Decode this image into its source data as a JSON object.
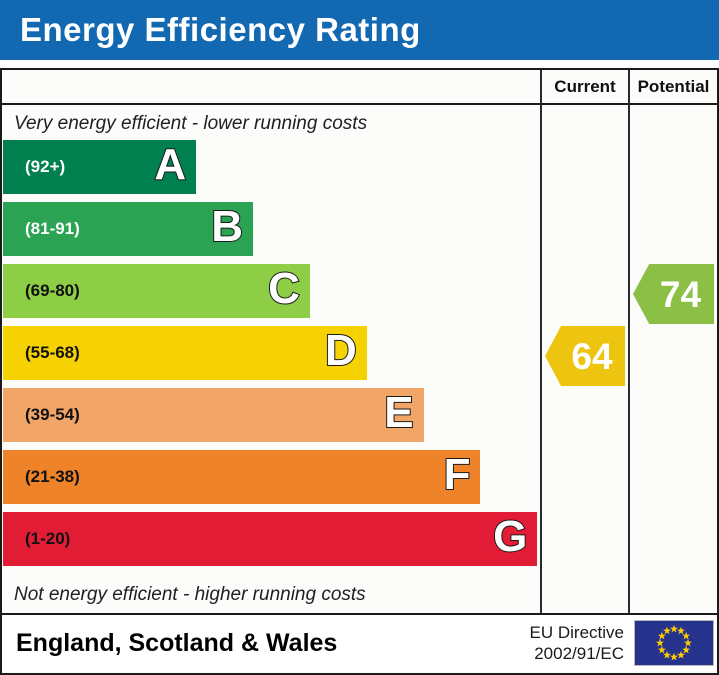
{
  "title": "Energy Efficiency Rating",
  "title_bar_color": "#1268b1",
  "columns": {
    "current_label": "Current",
    "potential_label": "Potential"
  },
  "captions": {
    "top": "Very energy efficient - lower running costs",
    "bottom": "Not energy efficient - higher running costs"
  },
  "bands": [
    {
      "letter": "A",
      "range": "(92+)",
      "color": "#00804e",
      "label_color": "#ffffff"
    },
    {
      "letter": "B",
      "range": "(81-91)",
      "color": "#2aa352",
      "label_color": "#ffffff"
    },
    {
      "letter": "C",
      "range": "(69-80)",
      "color": "#8dce46",
      "label_color": "#111111"
    },
    {
      "letter": "D",
      "range": "(55-68)",
      "color": "#f7d202",
      "label_color": "#111111"
    },
    {
      "letter": "E",
      "range": "(39-54)",
      "color": "#f1a566",
      "label_color": "#111111"
    },
    {
      "letter": "F",
      "range": "(21-38)",
      "color": "#ee8329",
      "label_color": "#111111"
    },
    {
      "letter": "G",
      "range": "(1-20)",
      "color": "#e31c35",
      "label_color": "#111111"
    }
  ],
  "ratings": {
    "current": {
      "value": "64",
      "band": "D",
      "color": "#edc40f"
    },
    "potential": {
      "value": "74",
      "band": "C",
      "color": "#8cbf45"
    }
  },
  "footer": {
    "region": "England, Scotland & Wales",
    "directive_line1": "EU Directive",
    "directive_line2": "2002/91/EC",
    "flag_colors": {
      "field": "#26338c",
      "stars": "#ffcc00"
    }
  },
  "chart_data": {
    "type": "bar",
    "title": "Energy Efficiency Rating",
    "orientation": "horizontal",
    "categories": [
      "A",
      "B",
      "C",
      "D",
      "E",
      "F",
      "G"
    ],
    "band_ranges": [
      "92+",
      "81-91",
      "69-80",
      "55-68",
      "39-54",
      "21-38",
      "1-20"
    ],
    "band_colors": [
      "#00804e",
      "#2aa352",
      "#8dce46",
      "#f7d202",
      "#f1a566",
      "#ee8329",
      "#e31c35"
    ],
    "series": [
      {
        "name": "Current",
        "value": 64,
        "band": "D",
        "color": "#edc40f"
      },
      {
        "name": "Potential",
        "value": 74,
        "band": "C",
        "color": "#8cbf45"
      }
    ],
    "scale_range": [
      1,
      100
    ],
    "annotations": [
      "Very energy efficient - lower running costs",
      "Not energy efficient - higher running costs"
    ],
    "footer": "England, Scotland & Wales | EU Directive 2002/91/EC"
  }
}
